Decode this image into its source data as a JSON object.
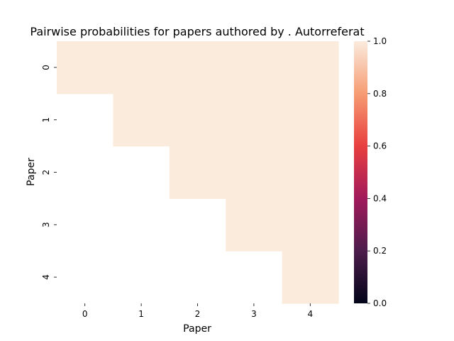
{
  "chart_data": {
    "type": "heatmap",
    "title": "Pairwise probabilities for papers authored by . Autorreferat",
    "xlabel": "Paper",
    "ylabel": "Paper",
    "x_ticks": [
      "0",
      "1",
      "2",
      "3",
      "4"
    ],
    "y_ticks": [
      "0",
      "1",
      "2",
      "3",
      "4"
    ],
    "values": [
      [
        1.0,
        1.0,
        1.0,
        1.0,
        1.0
      ],
      [
        null,
        1.0,
        1.0,
        1.0,
        1.0
      ],
      [
        null,
        null,
        1.0,
        1.0,
        1.0
      ],
      [
        null,
        null,
        null,
        1.0,
        1.0
      ],
      [
        null,
        null,
        null,
        null,
        1.0
      ]
    ],
    "colorbar": {
      "range": [
        0.0,
        1.0
      ],
      "ticks": [
        "0.0",
        "0.2",
        "0.4",
        "0.6",
        "0.8",
        "1.0"
      ],
      "colormap": "rocket",
      "stops": [
        "#03051a",
        "#4c1d4b",
        "#a11a5b",
        "#e83f3f",
        "#f69c73",
        "#faebdd"
      ]
    },
    "grid": false
  }
}
